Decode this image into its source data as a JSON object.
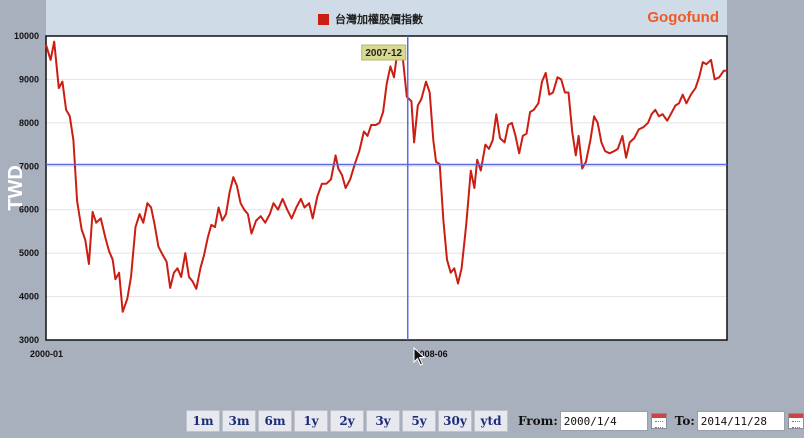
{
  "header": {
    "legend_label": "台灣加權股價指數",
    "brand": "Gogofund",
    "series_color": "#cc1d12"
  },
  "chart_data": {
    "type": "line",
    "title": "",
    "ylabel": "TWD",
    "ylim": [
      3000,
      10000
    ],
    "yticks": [
      3000,
      4000,
      5000,
      6000,
      7000,
      8000,
      9000,
      10000
    ],
    "xlim": [
      2000.0,
      2014.91
    ],
    "xtick_labels": [
      {
        "label": "2000-01",
        "x": 2000.0
      },
      {
        "label": "2008-06",
        "x": 2008.42
      }
    ],
    "grid": true,
    "legend": "top-center",
    "crosshair": {
      "x": 2007.92,
      "y": 7040,
      "label": "2007-12"
    },
    "series": [
      {
        "name": "台灣加權股價指數",
        "color": "#cc1d12",
        "points": [
          [
            2000.0,
            9800
          ],
          [
            2000.1,
            9450
          ],
          [
            2000.18,
            9870
          ],
          [
            2000.28,
            8800
          ],
          [
            2000.36,
            8950
          ],
          [
            2000.44,
            8300
          ],
          [
            2000.52,
            8150
          ],
          [
            2000.6,
            7600
          ],
          [
            2000.68,
            6200
          ],
          [
            2000.78,
            5550
          ],
          [
            2000.86,
            5300
          ],
          [
            2000.94,
            4750
          ],
          [
            2001.02,
            5950
          ],
          [
            2001.1,
            5700
          ],
          [
            2001.2,
            5800
          ],
          [
            2001.3,
            5350
          ],
          [
            2001.38,
            5050
          ],
          [
            2001.46,
            4850
          ],
          [
            2001.52,
            4400
          ],
          [
            2001.6,
            4550
          ],
          [
            2001.68,
            3650
          ],
          [
            2001.78,
            3950
          ],
          [
            2001.86,
            4450
          ],
          [
            2001.96,
            5600
          ],
          [
            2002.05,
            5900
          ],
          [
            2002.13,
            5700
          ],
          [
            2002.22,
            6150
          ],
          [
            2002.3,
            6050
          ],
          [
            2002.38,
            5650
          ],
          [
            2002.46,
            5150
          ],
          [
            2002.56,
            4950
          ],
          [
            2002.64,
            4800
          ],
          [
            2002.72,
            4200
          ],
          [
            2002.8,
            4550
          ],
          [
            2002.88,
            4650
          ],
          [
            2002.96,
            4450
          ],
          [
            2003.05,
            5000
          ],
          [
            2003.13,
            4450
          ],
          [
            2003.21,
            4350
          ],
          [
            2003.29,
            4180
          ],
          [
            2003.38,
            4650
          ],
          [
            2003.46,
            4950
          ],
          [
            2003.54,
            5350
          ],
          [
            2003.62,
            5650
          ],
          [
            2003.7,
            5600
          ],
          [
            2003.78,
            6050
          ],
          [
            2003.86,
            5750
          ],
          [
            2003.94,
            5900
          ],
          [
            2004.02,
            6400
          ],
          [
            2004.1,
            6750
          ],
          [
            2004.18,
            6550
          ],
          [
            2004.26,
            6150
          ],
          [
            2004.34,
            6000
          ],
          [
            2004.42,
            5900
          ],
          [
            2004.5,
            5450
          ],
          [
            2004.6,
            5750
          ],
          [
            2004.7,
            5850
          ],
          [
            2004.8,
            5700
          ],
          [
            2004.9,
            5900
          ],
          [
            2004.98,
            6150
          ],
          [
            2005.08,
            6000
          ],
          [
            2005.18,
            6250
          ],
          [
            2005.28,
            6000
          ],
          [
            2005.38,
            5800
          ],
          [
            2005.48,
            6050
          ],
          [
            2005.58,
            6250
          ],
          [
            2005.66,
            6050
          ],
          [
            2005.76,
            6150
          ],
          [
            2005.84,
            5800
          ],
          [
            2005.94,
            6300
          ],
          [
            2006.04,
            6600
          ],
          [
            2006.14,
            6600
          ],
          [
            2006.24,
            6700
          ],
          [
            2006.34,
            7250
          ],
          [
            2006.4,
            6950
          ],
          [
            2006.48,
            6800
          ],
          [
            2006.56,
            6500
          ],
          [
            2006.66,
            6700
          ],
          [
            2006.76,
            7050
          ],
          [
            2006.86,
            7350
          ],
          [
            2006.96,
            7800
          ],
          [
            2007.04,
            7700
          ],
          [
            2007.12,
            7950
          ],
          [
            2007.22,
            7950
          ],
          [
            2007.3,
            8000
          ],
          [
            2007.38,
            8250
          ],
          [
            2007.46,
            8900
          ],
          [
            2007.54,
            9300
          ],
          [
            2007.62,
            9050
          ],
          [
            2007.7,
            9700
          ],
          [
            2007.8,
            9600
          ],
          [
            2007.9,
            8600
          ],
          [
            2008.0,
            8500
          ],
          [
            2008.06,
            7550
          ],
          [
            2008.14,
            8400
          ],
          [
            2008.22,
            8550
          ],
          [
            2008.32,
            8950
          ],
          [
            2008.4,
            8700
          ],
          [
            2008.48,
            7600
          ],
          [
            2008.54,
            7100
          ],
          [
            2008.62,
            7050
          ],
          [
            2008.7,
            5750
          ],
          [
            2008.78,
            4850
          ],
          [
            2008.86,
            4550
          ],
          [
            2008.94,
            4650
          ],
          [
            2009.02,
            4300
          ],
          [
            2009.1,
            4650
          ],
          [
            2009.2,
            5650
          ],
          [
            2009.3,
            6900
          ],
          [
            2009.38,
            6500
          ],
          [
            2009.44,
            7150
          ],
          [
            2009.52,
            6900
          ],
          [
            2009.62,
            7500
          ],
          [
            2009.7,
            7400
          ],
          [
            2009.78,
            7600
          ],
          [
            2009.86,
            8200
          ],
          [
            2009.94,
            7650
          ],
          [
            2010.04,
            7550
          ],
          [
            2010.12,
            7950
          ],
          [
            2010.2,
            8000
          ],
          [
            2010.28,
            7700
          ],
          [
            2010.36,
            7300
          ],
          [
            2010.44,
            7700
          ],
          [
            2010.52,
            7750
          ],
          [
            2010.6,
            8250
          ],
          [
            2010.68,
            8300
          ],
          [
            2010.78,
            8450
          ],
          [
            2010.86,
            8950
          ],
          [
            2010.94,
            9150
          ],
          [
            2011.02,
            8650
          ],
          [
            2011.1,
            8700
          ],
          [
            2011.2,
            9050
          ],
          [
            2011.28,
            9000
          ],
          [
            2011.36,
            8700
          ],
          [
            2011.44,
            8700
          ],
          [
            2011.52,
            7800
          ],
          [
            2011.6,
            7250
          ],
          [
            2011.66,
            7700
          ],
          [
            2011.74,
            6950
          ],
          [
            2011.82,
            7100
          ],
          [
            2011.92,
            7600
          ],
          [
            2012.0,
            8150
          ],
          [
            2012.08,
            8000
          ],
          [
            2012.16,
            7550
          ],
          [
            2012.24,
            7350
          ],
          [
            2012.34,
            7300
          ],
          [
            2012.44,
            7350
          ],
          [
            2012.52,
            7400
          ],
          [
            2012.62,
            7700
          ],
          [
            2012.7,
            7200
          ],
          [
            2012.78,
            7550
          ],
          [
            2012.88,
            7650
          ],
          [
            2012.98,
            7850
          ],
          [
            2013.08,
            7900
          ],
          [
            2013.18,
            8000
          ],
          [
            2013.26,
            8200
          ],
          [
            2013.34,
            8300
          ],
          [
            2013.42,
            8150
          ],
          [
            2013.5,
            8200
          ],
          [
            2013.6,
            8050
          ],
          [
            2013.68,
            8200
          ],
          [
            2013.78,
            8400
          ],
          [
            2013.86,
            8450
          ],
          [
            2013.94,
            8650
          ],
          [
            2014.02,
            8450
          ],
          [
            2014.12,
            8650
          ],
          [
            2014.22,
            8800
          ],
          [
            2014.3,
            9050
          ],
          [
            2014.38,
            9400
          ],
          [
            2014.46,
            9350
          ],
          [
            2014.56,
            9450
          ],
          [
            2014.64,
            9000
          ],
          [
            2014.74,
            9050
          ],
          [
            2014.84,
            9200
          ],
          [
            2014.91,
            9200
          ]
        ]
      }
    ]
  },
  "controls": {
    "ranges": [
      "1m",
      "3m",
      "6m",
      "1y",
      "2y",
      "3y",
      "5y",
      "30y",
      "ytd"
    ],
    "from_label": "From:",
    "from_value": "2000/1/4",
    "to_label": "To:",
    "to_value": "2014/11/28"
  }
}
